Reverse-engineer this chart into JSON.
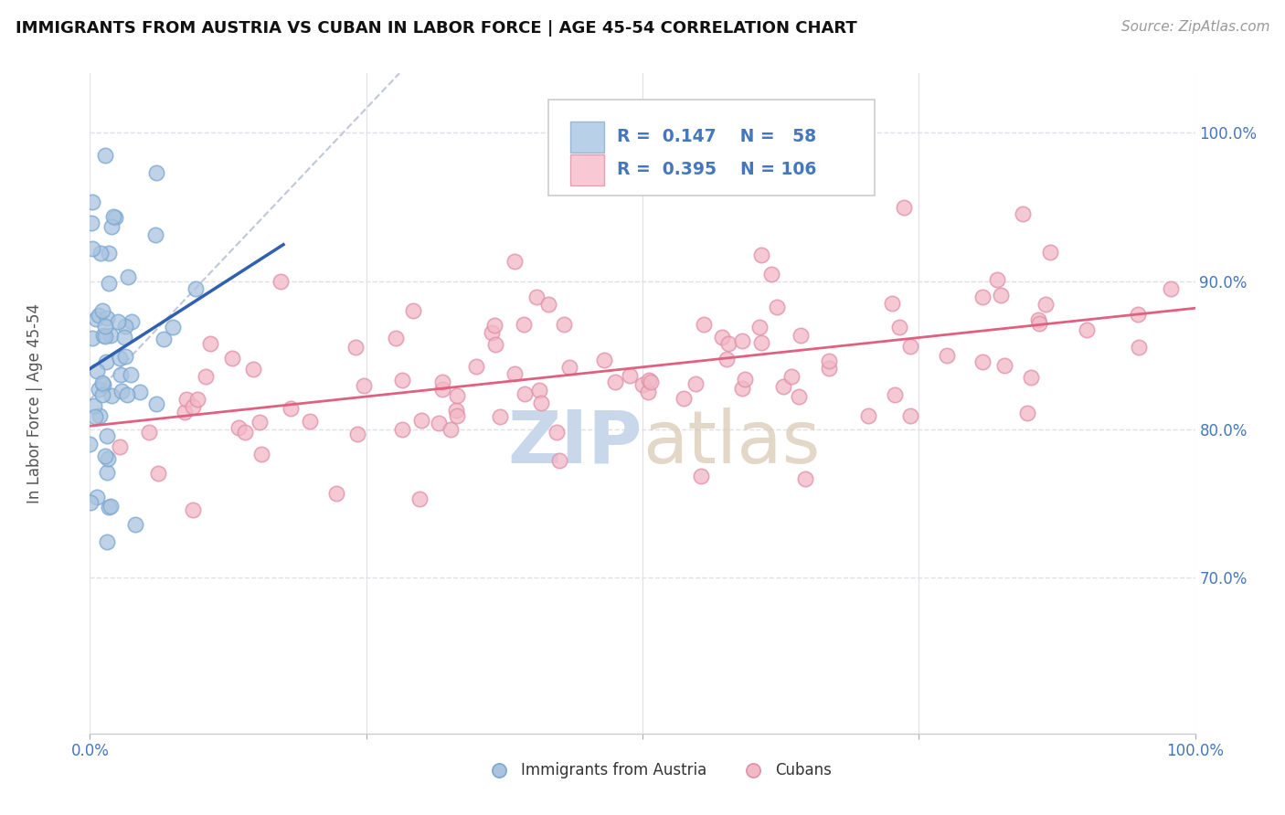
{
  "title": "IMMIGRANTS FROM AUSTRIA VS CUBAN IN LABOR FORCE | AGE 45-54 CORRELATION CHART",
  "source": "Source: ZipAtlas.com",
  "ylabel": "In Labor Force | Age 45-54",
  "austria_R": 0.147,
  "austria_N": 58,
  "cuban_R": 0.395,
  "cuban_N": 106,
  "austria_color": "#aac4df",
  "austria_edge_color": "#7aa8d0",
  "cuban_color": "#f2b8c6",
  "cuban_edge_color": "#e090a8",
  "austria_line_color": "#3060b0",
  "cuban_line_color": "#e06080",
  "dash_line_color": "#c0c8d8",
  "background_color": "#ffffff",
  "grid_color": "#e0e0e8",
  "text_color": "#4477bb",
  "title_color": "#111111",
  "watermark_color": "#c8d8ea",
  "xlim": [
    0.0,
    1.0
  ],
  "ylim": [
    0.595,
    1.04
  ],
  "y_tick_right_vals": [
    1.0,
    0.9,
    0.8,
    0.7
  ],
  "y_tick_right_labels": [
    "100.0%",
    "90.0%",
    "80.0%",
    "70.0%"
  ],
  "legend_austria_color": "#b8d0e8",
  "legend_cuban_color": "#f8c8d4"
}
